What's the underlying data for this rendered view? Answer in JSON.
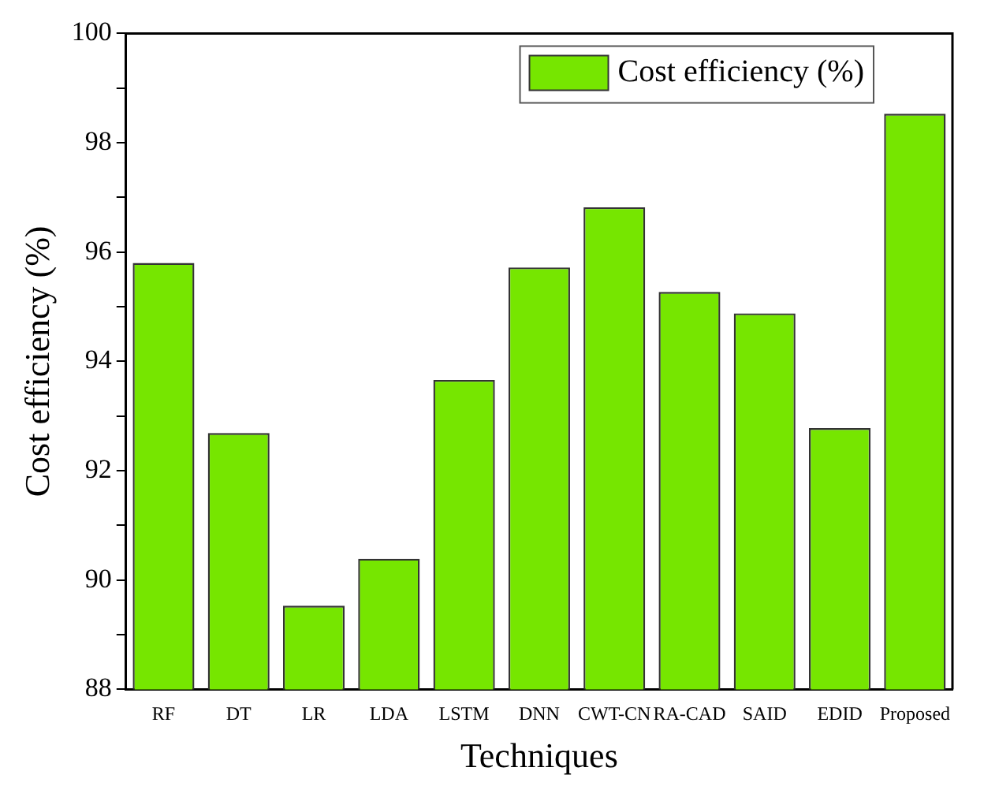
{
  "chart_data": {
    "type": "bar",
    "xlabel": "Techniques",
    "ylabel": "Cost efficiency (%)",
    "categories": [
      "RF",
      "DT",
      "LR",
      "LDA",
      "LSTM",
      "DNN",
      "CWT-CN",
      "RA-CAD",
      "SAID",
      "EDID",
      "Proposed"
    ],
    "series": [
      {
        "name": "Cost efficiency (%)",
        "color": "#76e600",
        "values": [
          95.8,
          92.69,
          89.53,
          90.39,
          93.66,
          95.72,
          96.82,
          95.27,
          94.88,
          92.78,
          98.53
        ]
      }
    ],
    "ylim": [
      88,
      100
    ],
    "yticks": [
      88,
      {
        "value": 89,
        "label": null
      },
      90,
      {
        "value": 91,
        "label": null
      },
      92,
      {
        "value": 93,
        "label": null
      },
      94,
      {
        "value": 95,
        "label": null
      },
      96,
      {
        "value": 97,
        "label": null
      },
      98,
      {
        "value": 99,
        "label": null
      },
      100
    ],
    "grid": false,
    "legend": "top right"
  }
}
